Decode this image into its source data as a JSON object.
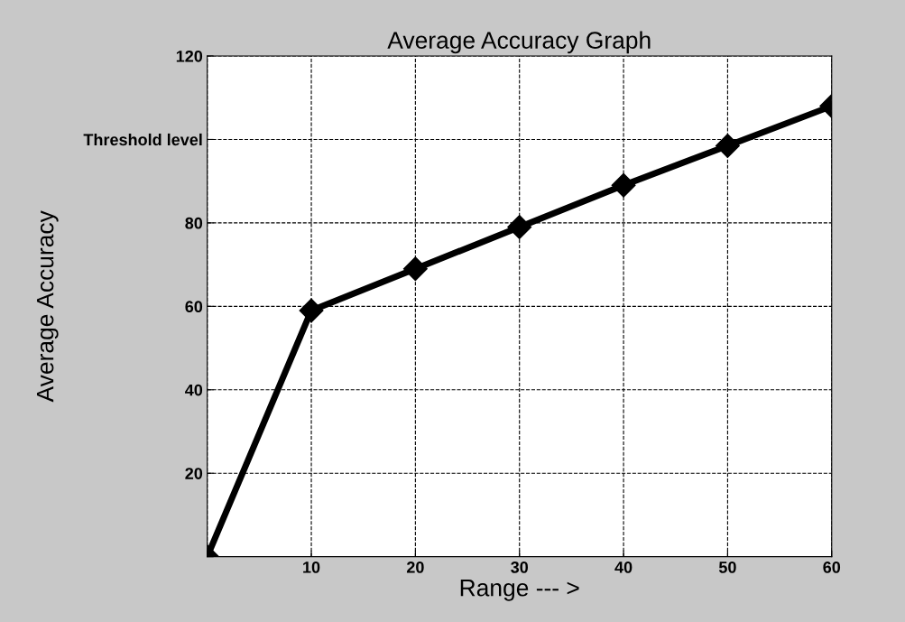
{
  "chart_data": {
    "type": "line",
    "title": "Average Accuracy Graph",
    "xlabel": "Range --- >",
    "ylabel": "Average Accuracy",
    "x": [
      0,
      10,
      20,
      30,
      40,
      50,
      60
    ],
    "series": [
      {
        "color": "#000000",
        "values": [
          0,
          59,
          69,
          79,
          89,
          98.5,
          108
        ]
      }
    ],
    "xlim": [
      0,
      60
    ],
    "ylim": [
      0,
      120
    ],
    "xticks": [
      {
        "value": 0,
        "label": null
      },
      10,
      20,
      30,
      40,
      50,
      60
    ],
    "yticks": [
      {
        "value": 0,
        "label": null
      },
      20,
      40,
      60,
      80,
      {
        "value": 100,
        "label": "Threshold level"
      },
      120
    ],
    "grid": true,
    "marker": "diamond",
    "line_style": "solid"
  }
}
